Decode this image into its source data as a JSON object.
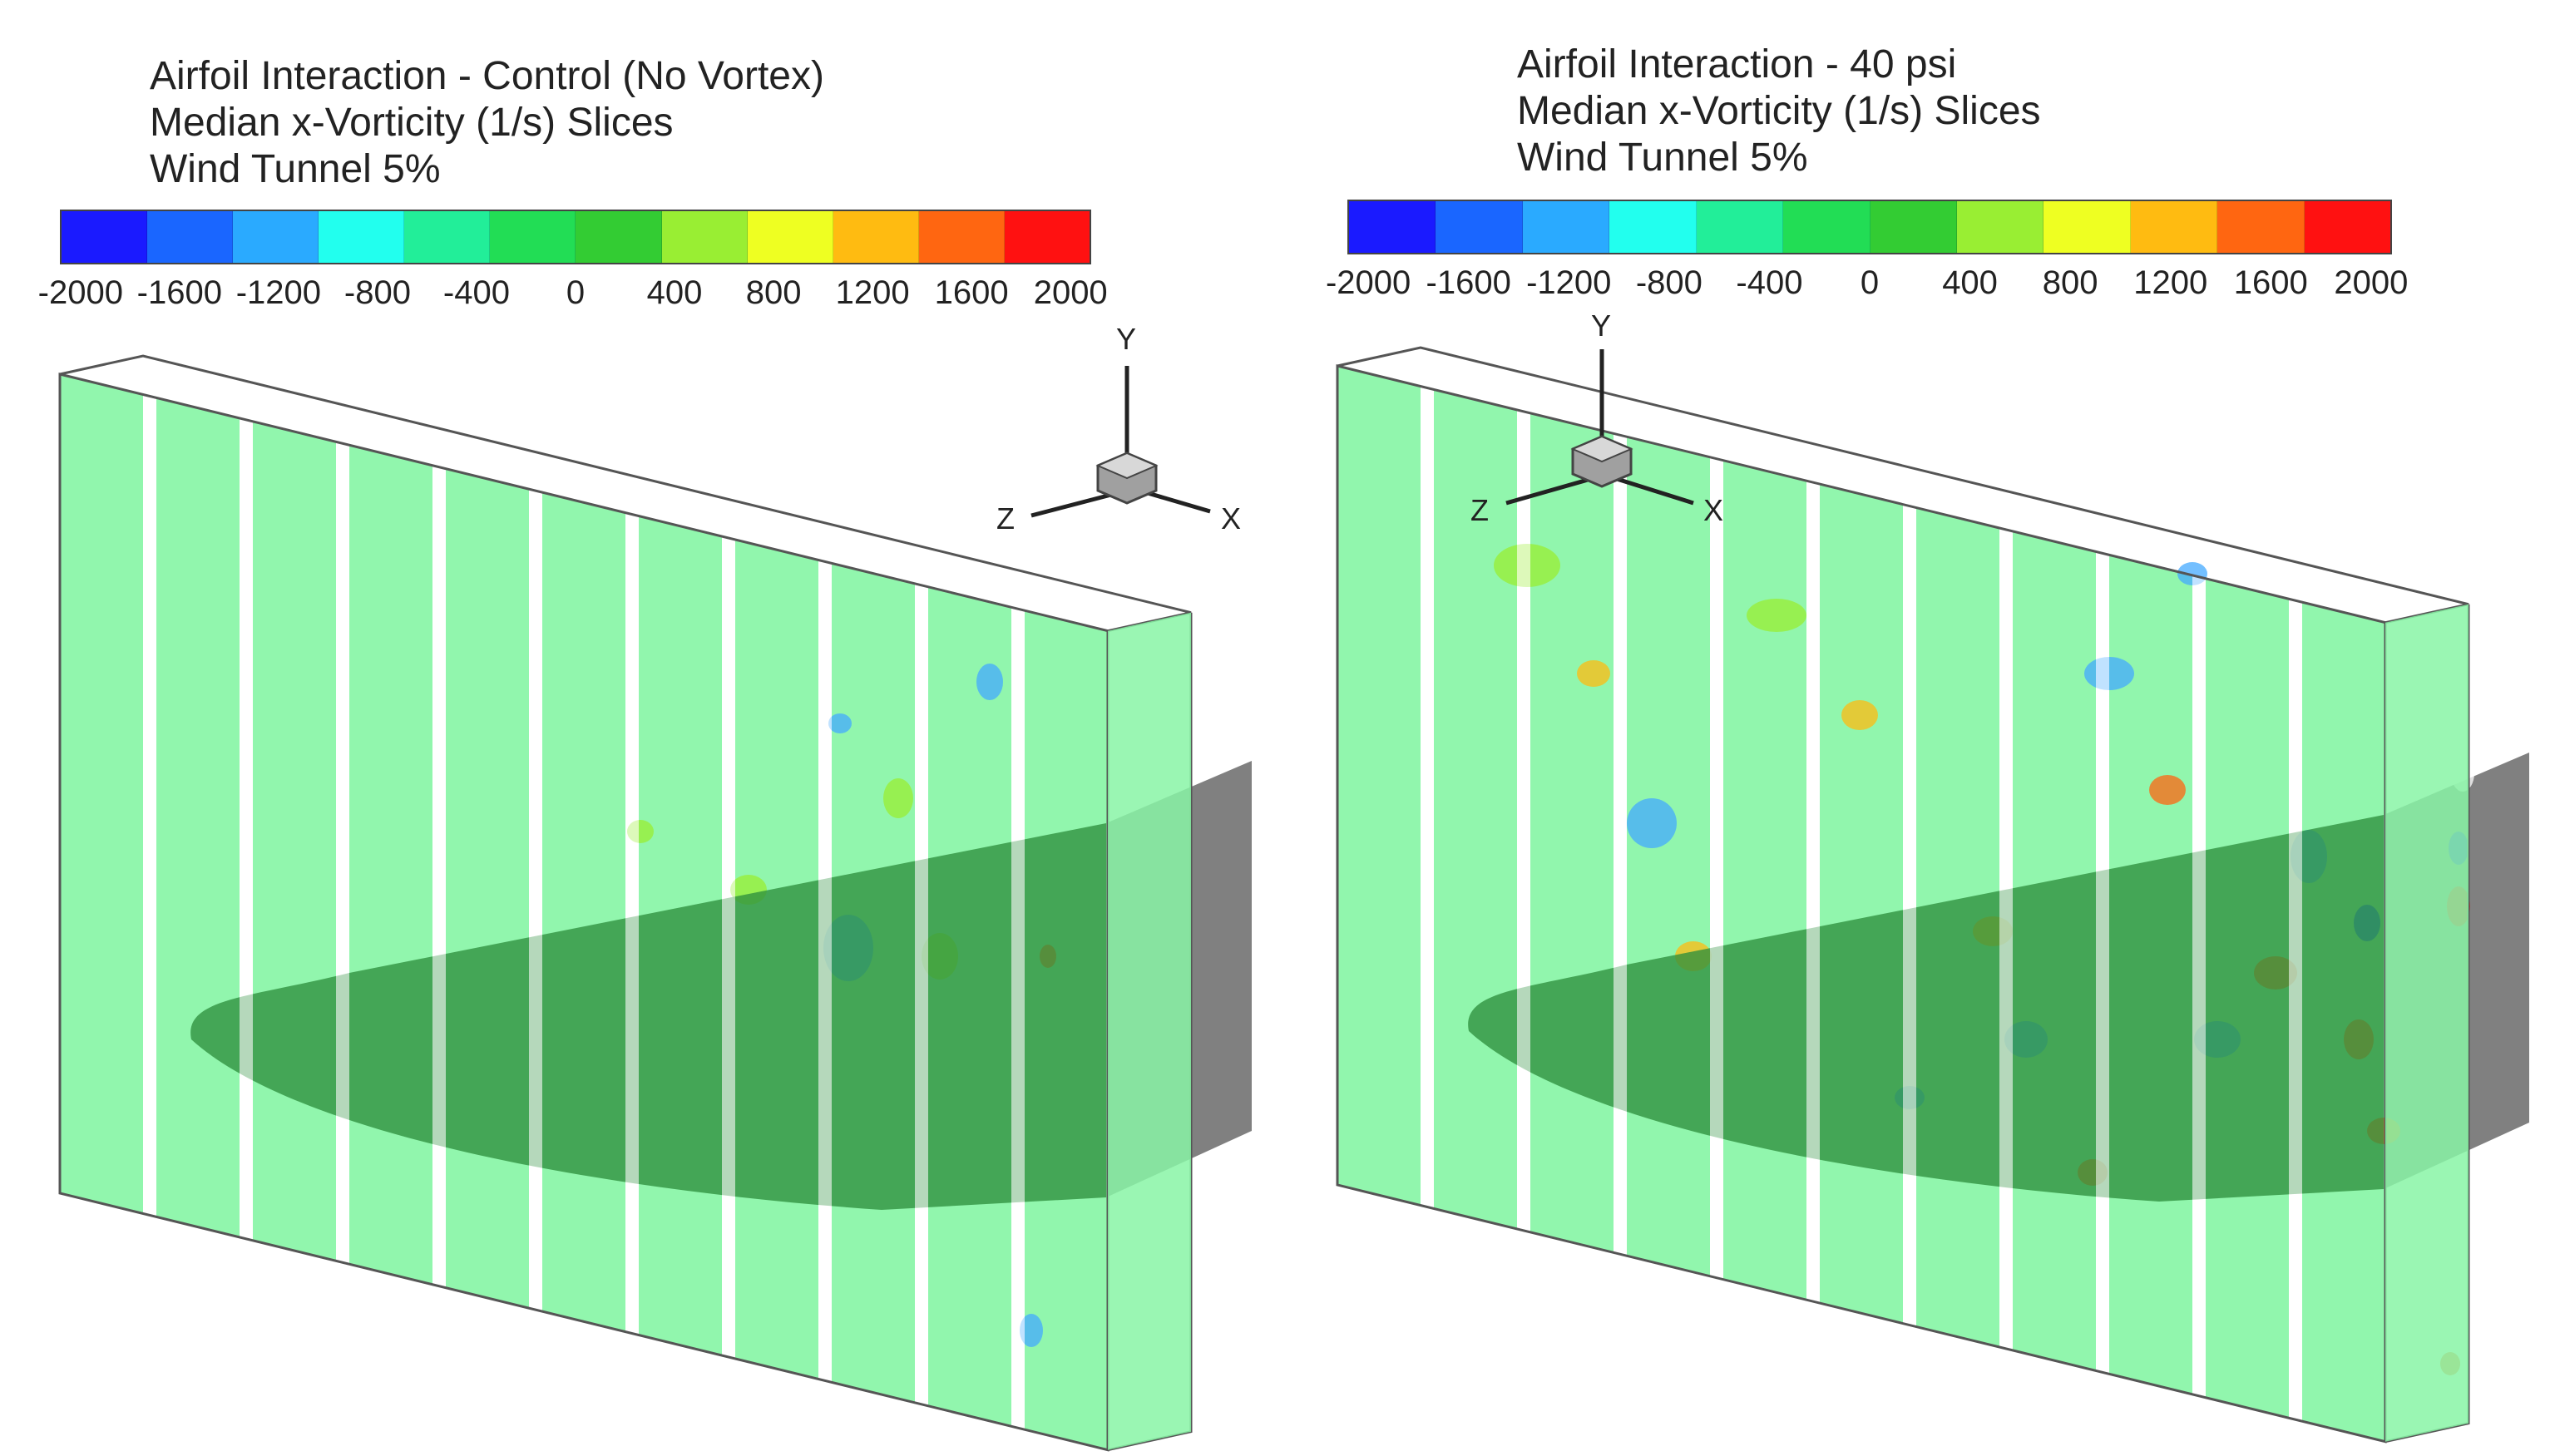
{
  "panels": [
    {
      "title": [
        "Airfoil Interaction - Control (No Vortex)",
        "Median x-Vorticity (1/s) Slices",
        "Wind Tunnel 5%"
      ],
      "colorbar": {
        "labels": [
          "-2000",
          "-1600",
          "-1200",
          "-800",
          "-400",
          "0",
          "400",
          "800",
          "1200",
          "1600",
          "2000"
        ],
        "colors": [
          "#1a1aff",
          "#1a66ff",
          "#2aaaff",
          "#22ffee",
          "#22ee99",
          "#22dd55",
          "#33cc33",
          "#99ee33",
          "#eeff22",
          "#ffbb11",
          "#ff6611",
          "#ff1111"
        ]
      },
      "axes": {
        "y": "Y",
        "z": "Z",
        "x": "X"
      }
    },
    {
      "title": [
        "Airfoil Interaction - 40 psi",
        "Median x-Vorticity (1/s) Slices",
        "Wind Tunnel 5%"
      ],
      "colorbar": {
        "labels": [
          "-2000",
          "-1600",
          "-1200",
          "-800",
          "-400",
          "0",
          "400",
          "800",
          "1200",
          "1600",
          "2000"
        ],
        "colors": [
          "#1a1aff",
          "#1a66ff",
          "#2aaaff",
          "#22ffee",
          "#22ee99",
          "#22dd55",
          "#33cc33",
          "#99ee33",
          "#eeff22",
          "#ffbb11",
          "#ff6611",
          "#ff1111"
        ]
      },
      "axes": {
        "y": "Y",
        "z": "Z",
        "x": "X"
      }
    }
  ],
  "colors": {
    "slice": "#88f5a6",
    "airfoil": "#2e8f3e",
    "frame": "#555555",
    "wing_gray": "#808080"
  }
}
